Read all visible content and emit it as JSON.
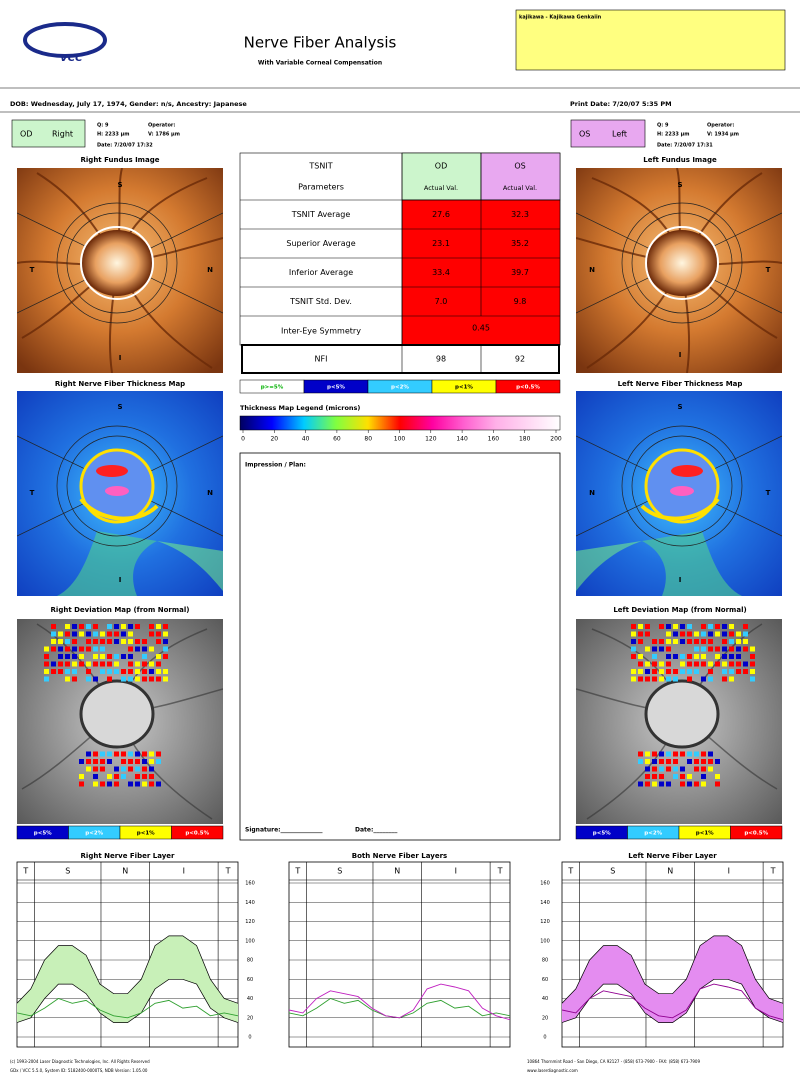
{
  "header": {
    "logo": "VCC",
    "title": "Nerve Fiber Analysis",
    "subtitle": "With Variable Corneal Compensation",
    "patient": "kajikawa - Kajikawa Genkaiin"
  },
  "info": {
    "dob": "DOB: Wednesday, July 17, 1974, Gender: n/s, Ancestry: Japanese",
    "print_date": "Print Date: 7/20/07 5:35 PM"
  },
  "od": {
    "eye": "OD",
    "side": "Right",
    "q": "Q: 9",
    "operator": "Operator:",
    "h": "H: 2233 µm",
    "v": "V: 1786 µm",
    "date": "Date: 7/20/07 17:32"
  },
  "os": {
    "eye": "OS",
    "side": "Left",
    "q": "Q: 9",
    "operator": "Operator:",
    "h": "H: 2233 µm",
    "v": "V: 1934 µm",
    "date": "Date: 7/20/07 17:31"
  },
  "images": {
    "right_fundus": {
      "title": "Right Fundus Image",
      "s": "S",
      "t": "T",
      "n": "N",
      "i": "I"
    },
    "left_fundus": {
      "title": "Left Fundus Image",
      "s": "S",
      "t": "T",
      "n": "N",
      "i": "I"
    },
    "right_thickness": {
      "title": "Right Nerve Fiber Thickness Map",
      "s": "S",
      "t": "T",
      "n": "N",
      "i": "I"
    },
    "left_thickness": {
      "title": "Left Nerve Fiber Thickness Map",
      "s": "S",
      "t": "T",
      "n": "N",
      "i": "I"
    },
    "right_deviation": {
      "title": "Right Deviation Map (from Normal)"
    },
    "left_deviation": {
      "title": "Left Deviation Map (from Normal)"
    }
  },
  "table": {
    "parameters": "TSNIT",
    "parameters2": "Parameters",
    "od": "OD",
    "os": "OS",
    "actual": "Actual Val.",
    "rows": [
      [
        "TSNIT Average",
        "27.6",
        "32.3"
      ],
      [
        "Superior Average",
        "23.1",
        "35.2"
      ],
      [
        "Inferior Average",
        "33.4",
        "39.7"
      ],
      [
        "TSNIT Std. Dev.",
        "7.0",
        "9.8"
      ]
    ],
    "symmetry": [
      "Inter-Eye Symmetry",
      "0.45"
    ],
    "nfi": [
      "NFI",
      "98",
      "92"
    ]
  },
  "p_legend": [
    {
      "label": "p>=5%",
      "color": "#ffffff",
      "text": "#00b000"
    },
    {
      "label": "p<5%",
      "color": "#0000c8",
      "text": "#ffffff"
    },
    {
      "label": "p<2%",
      "color": "#33ccff",
      "text": "#ffffff"
    },
    {
      "label": "p<1%",
      "color": "#ffff00",
      "text": "#000000"
    },
    {
      "label": "p<0.5%",
      "color": "#ff0000",
      "text": "#ffffff"
    }
  ],
  "thickness_legend": {
    "title": "Thickness Map Legend (microns)",
    "lim": [
      0,
      200
    ],
    "ticks": [
      0,
      20,
      40,
      60,
      80,
      100,
      120,
      140,
      160,
      180,
      200
    ]
  },
  "impression": "Impression / Plan:",
  "signature": "Signature:______________",
  "sign_date": "Date:________",
  "graphs": [
    {
      "title": "Right Nerve Fiber Layer",
      "sectors": [
        "T",
        "S",
        "N",
        "I",
        "T"
      ],
      "ylim": [
        0,
        160
      ],
      "yticks": [
        0,
        20,
        40,
        60,
        80,
        100,
        120,
        140,
        160
      ],
      "tick_side": "right",
      "band": {
        "color": "#c8f0b8",
        "upper": [
          35,
          50,
          80,
          95,
          95,
          85,
          55,
          45,
          45,
          60,
          95,
          105,
          105,
          95,
          60,
          40,
          35
        ],
        "lower": [
          15,
          20,
          40,
          55,
          55,
          45,
          25,
          15,
          15,
          25,
          50,
          60,
          60,
          55,
          30,
          20,
          15
        ]
      },
      "series": [
        {
          "color": "#30a030",
          "values": [
            25,
            22,
            30,
            40,
            35,
            38,
            28,
            22,
            20,
            25,
            35,
            38,
            30,
            32,
            22,
            25,
            22
          ]
        }
      ]
    },
    {
      "title": "Both Nerve Fiber Layers",
      "sectors": [
        "T",
        "S",
        "N",
        "I",
        "T"
      ],
      "ylim": [
        0,
        160
      ],
      "yticks": [
        0,
        20,
        40,
        60,
        80,
        100,
        120,
        140,
        160
      ],
      "series": [
        {
          "color": "#30a030",
          "values": [
            25,
            22,
            30,
            40,
            35,
            38,
            28,
            22,
            20,
            25,
            35,
            38,
            30,
            32,
            22,
            25,
            22
          ]
        },
        {
          "color": "#c020c0",
          "values": [
            28,
            25,
            40,
            48,
            45,
            42,
            30,
            22,
            20,
            28,
            50,
            55,
            52,
            48,
            30,
            22,
            18
          ]
        }
      ]
    },
    {
      "title": "Left Nerve Fiber Layer",
      "sectors": [
        "T",
        "S",
        "N",
        "I",
        "T"
      ],
      "ylim": [
        0,
        160
      ],
      "yticks": [
        0,
        20,
        40,
        60,
        80,
        100,
        120,
        140,
        160
      ],
      "tick_side": "left",
      "band": {
        "color": "#e48cf0",
        "upper": [
          35,
          50,
          80,
          95,
          95,
          85,
          55,
          45,
          45,
          60,
          95,
          105,
          105,
          95,
          60,
          40,
          35
        ],
        "lower": [
          15,
          20,
          40,
          55,
          55,
          45,
          25,
          15,
          15,
          25,
          50,
          60,
          60,
          55,
          30,
          20,
          15
        ]
      },
      "series": [
        {
          "color": "#900090",
          "values": [
            28,
            25,
            40,
            48,
            45,
            42,
            30,
            22,
            20,
            28,
            50,
            55,
            52,
            48,
            30,
            22,
            18
          ]
        }
      ]
    }
  ],
  "footer": {
    "copyright": "(c) 1993-2004 Laser Diagnostic Technologies, Inc. All Rights Reserved",
    "version": "GDx / VCC 5.5.0, System ID: 5182400-0000TS, NDB Version: 1.05.00",
    "address": "10864 Thornmint Road - San Diego, CA 92127 - (858) 673-7900 - FAX: (858) 673-7909",
    "web": "www.laserdiagnostic.com"
  }
}
